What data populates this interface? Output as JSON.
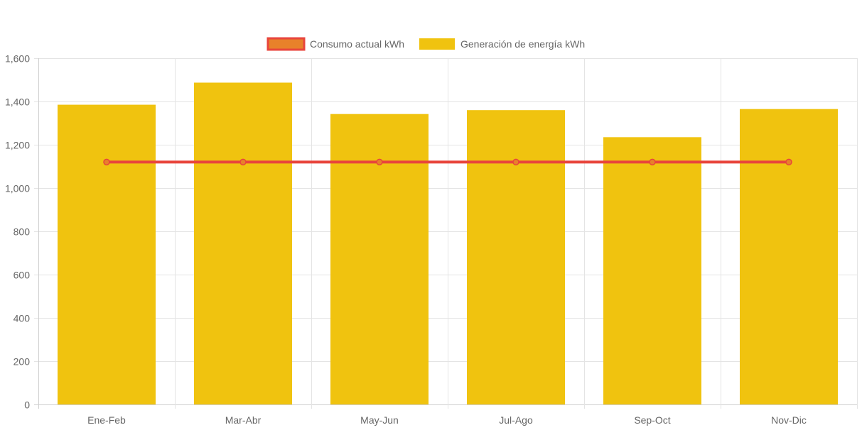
{
  "chart_data": {
    "type": "bar",
    "categories": [
      "Ene-Feb",
      "Mar-Abr",
      "May-Jun",
      "Jul-Ago",
      "Sep-Oct",
      "Nov-Dic"
    ],
    "series": [
      {
        "name": "Consumo actual kWh",
        "type": "line",
        "values": [
          1120,
          1120,
          1120,
          1120,
          1120,
          1120
        ],
        "color": "#e8453c",
        "point_color": "#e8812a"
      },
      {
        "name": "Generación de energía kWh",
        "type": "bar",
        "values": [
          1385,
          1487,
          1342,
          1360,
          1235,
          1365
        ],
        "color": "#f0c30f"
      }
    ],
    "y_ticks": [
      "0",
      "200",
      "400",
      "600",
      "800",
      "1,000",
      "1,200",
      "1,400",
      "1,600"
    ],
    "ylim": [
      0,
      1600
    ],
    "grid": true,
    "legend_position": "top"
  }
}
